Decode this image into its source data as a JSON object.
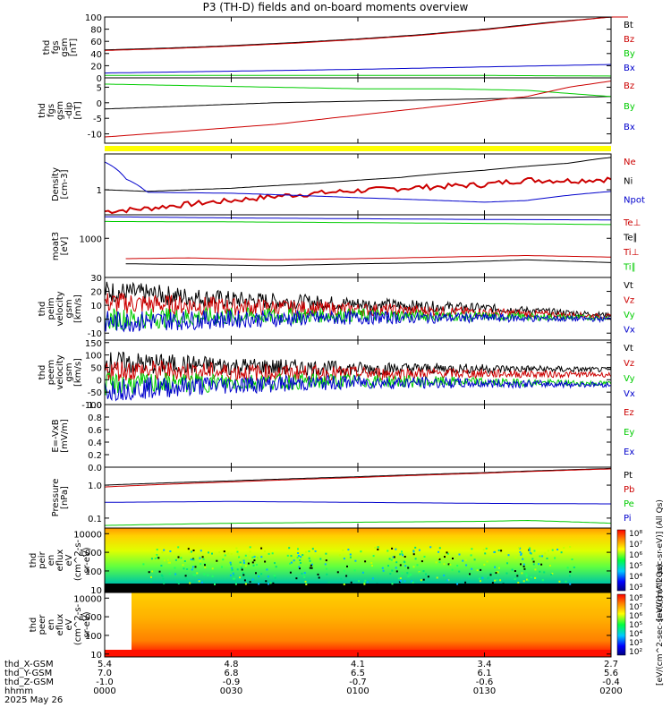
{
  "title": "P3 (TH-D) fields and on-board moments overview",
  "colors": {
    "black": "#000000",
    "red": "#cc0000",
    "green": "#00cc00",
    "blue": "#0000cc",
    "yellow": "#ffff00"
  },
  "chart_data": [
    {
      "id": "fgs_mag",
      "type": "line",
      "ylabel": [
        "thd",
        "fgs",
        "gsm",
        "[nT]"
      ],
      "ylim": [
        0,
        100
      ],
      "yticks": [
        0,
        20,
        40,
        60,
        80,
        100
      ],
      "legend": [
        {
          "name": "Bt",
          "color": "#000000"
        },
        {
          "name": "Bz",
          "color": "#cc0000"
        },
        {
          "name": "By",
          "color": "#00cc00"
        },
        {
          "name": "Bx",
          "color": "#0000cc"
        }
      ],
      "series": [
        {
          "name": "Bt",
          "color": "#000000",
          "x": [
            0,
            15,
            30,
            45,
            60,
            75,
            90,
            105,
            120,
            124
          ],
          "y": [
            46,
            49,
            53,
            58,
            64,
            71,
            80,
            91,
            100,
            100
          ]
        },
        {
          "name": "Bz",
          "color": "#cc0000",
          "x": [
            0,
            15,
            30,
            45,
            60,
            75,
            90,
            105,
            120,
            124
          ],
          "y": [
            45,
            48,
            52,
            57,
            63,
            70,
            79,
            90,
            100,
            100
          ]
        },
        {
          "name": "By",
          "color": "#00cc00",
          "x": [
            0,
            30,
            60,
            90,
            120
          ],
          "y": [
            4,
            4,
            4,
            4,
            3
          ]
        },
        {
          "name": "Bx",
          "color": "#0000cc",
          "x": [
            0,
            30,
            60,
            90,
            120
          ],
          "y": [
            8,
            11,
            14,
            18,
            22
          ]
        }
      ]
    },
    {
      "id": "fgs_dsl",
      "type": "line",
      "ylabel": [
        "thd",
        "fgs",
        "gsm",
        "-dip",
        "[nT]"
      ],
      "ylim": [
        -13,
        8
      ],
      "yticks": [
        -10,
        -5,
        0,
        5
      ],
      "legend": [
        {
          "name": "Bz",
          "color": "#cc0000"
        },
        {
          "name": "By",
          "color": "#00cc00"
        },
        {
          "name": "Bx",
          "color": "#0000cc"
        }
      ],
      "series": [
        {
          "name": "Bx",
          "color": "#000000",
          "x": [
            0,
            20,
            40,
            60,
            80,
            100,
            120
          ],
          "y": [
            -2,
            -1,
            0,
            0.5,
            1,
            1.5,
            2
          ]
        },
        {
          "name": "By",
          "color": "#00cc00",
          "x": [
            0,
            20,
            40,
            60,
            80,
            100,
            110,
            120
          ],
          "y": [
            6,
            5.5,
            5,
            4.5,
            4.5,
            4,
            3,
            2
          ]
        },
        {
          "name": "Bz",
          "color": "#cc0000",
          "x": [
            0,
            20,
            40,
            60,
            80,
            100,
            110,
            120
          ],
          "y": [
            -11,
            -9,
            -7,
            -4,
            -1,
            2,
            5,
            7
          ]
        }
      ]
    },
    {
      "id": "density",
      "type": "line",
      "ylabel": [
        "Density",
        "[cm-3]"
      ],
      "yscale": "log",
      "ylim": [
        0.2,
        10
      ],
      "yticks": [
        1
      ],
      "legend": [
        {
          "name": "Ne",
          "color": "#cc0000"
        },
        {
          "name": "Ni",
          "color": "#000000"
        },
        {
          "name": "Npot",
          "color": "#0000cc"
        }
      ],
      "series": [
        {
          "name": "Ni",
          "color": "#000000",
          "x": [
            0,
            10,
            30,
            50,
            70,
            90,
            110,
            120
          ],
          "y": [
            1.0,
            0.9,
            1.1,
            1.5,
            2.2,
            3.5,
            5.5,
            8
          ]
        },
        {
          "name": "Ne",
          "color": "#cc0000",
          "x": [
            0,
            10,
            30,
            50,
            70,
            90,
            100,
            110,
            120
          ],
          "y": [
            0.25,
            0.3,
            0.5,
            0.8,
            1.1,
            1.4,
            1.9,
            1.8,
            2.0
          ]
        },
        {
          "name": "Npot",
          "color": "#0000cc",
          "x": [
            0,
            5,
            10,
            30,
            60,
            90,
            100,
            120
          ],
          "y": [
            6,
            2.0,
            0.85,
            0.8,
            0.6,
            0.45,
            0.5,
            0.9
          ]
        }
      ]
    },
    {
      "id": "temperature",
      "type": "line",
      "ylabel": [
        "moat3",
        "[eV]"
      ],
      "ylim": [
        0,
        1600
      ],
      "yticks": [
        1000
      ],
      "legend": [
        {
          "name": "Te⊥",
          "color": "#cc0000"
        },
        {
          "name": "Te∥",
          "color": "#000000"
        },
        {
          "name": "Ti⊥",
          "color": "#cc0000"
        },
        {
          "name": "Ti∥",
          "color": "#00cc00"
        }
      ],
      "series": [
        {
          "name": "Te⊥",
          "color": "#0000cc",
          "x": [
            0,
            30,
            60,
            90,
            120
          ],
          "y": [
            1550,
            1520,
            1500,
            1480,
            1470
          ]
        },
        {
          "name": "Ti∥",
          "color": "#00cc00",
          "x": [
            0,
            30,
            60,
            90,
            120
          ],
          "y": [
            1430,
            1420,
            1400,
            1380,
            1350
          ]
        },
        {
          "name": "Ti⊥",
          "color": "#cc0000",
          "x": [
            5,
            20,
            40,
            60,
            80,
            100,
            120
          ],
          "y": [
            480,
            500,
            450,
            480,
            520,
            560,
            520
          ]
        },
        {
          "name": "Te∥",
          "color": "#000000",
          "x": [
            5,
            20,
            40,
            60,
            80,
            100,
            120
          ],
          "y": [
            350,
            330,
            300,
            350,
            380,
            450,
            380
          ]
        }
      ]
    },
    {
      "id": "peim_velocity",
      "type": "line",
      "ylabel": [
        "thd",
        "peim",
        "velocity",
        "gsm",
        "[km/s]"
      ],
      "ylim": [
        -15,
        30
      ],
      "yticks": [
        -10,
        0,
        10,
        20,
        30
      ],
      "legend": [
        {
          "name": "Vt",
          "color": "#000000"
        },
        {
          "name": "Vz",
          "color": "#cc0000"
        },
        {
          "name": "Vy",
          "color": "#00cc00"
        },
        {
          "name": "Vx",
          "color": "#0000cc"
        }
      ],
      "series": [
        {
          "name": "Vt",
          "color": "#000000",
          "x": [
            0,
            30,
            60,
            90,
            120
          ],
          "y": [
            20,
            14,
            11,
            8,
            3
          ]
        },
        {
          "name": "Vz",
          "color": "#cc0000",
          "x": [
            0,
            30,
            60,
            90,
            120
          ],
          "y": [
            12,
            9,
            7,
            5,
            2
          ]
        },
        {
          "name": "Vy",
          "color": "#00cc00",
          "x": [
            0,
            30,
            60,
            90,
            120
          ],
          "y": [
            0,
            2,
            3,
            2,
            1
          ]
        },
        {
          "name": "Vx",
          "color": "#0000cc",
          "x": [
            0,
            30,
            60,
            90,
            120
          ],
          "y": [
            -2,
            0,
            1,
            1,
            0
          ]
        }
      ]
    },
    {
      "id": "peem_velocity",
      "type": "line",
      "ylabel": [
        "thd",
        "peem",
        "velocity",
        "gsm",
        "[km/s]"
      ],
      "ylim": [
        -100,
        160
      ],
      "yticks": [
        -100,
        -50,
        0,
        50,
        100,
        150
      ],
      "legend": [
        {
          "name": "Vt",
          "color": "#000000"
        },
        {
          "name": "Vz",
          "color": "#cc0000"
        },
        {
          "name": "Vy",
          "color": "#00cc00"
        },
        {
          "name": "Vx",
          "color": "#0000cc"
        }
      ],
      "series": [
        {
          "name": "Vt",
          "color": "#000000",
          "x": [
            0,
            30,
            60,
            90,
            120
          ],
          "y": [
            70,
            55,
            45,
            45,
            40
          ]
        },
        {
          "name": "Vz",
          "color": "#cc0000",
          "x": [
            0,
            30,
            60,
            90,
            120
          ],
          "y": [
            40,
            30,
            25,
            25,
            20
          ]
        },
        {
          "name": "Vy",
          "color": "#00cc00",
          "x": [
            0,
            30,
            60,
            90,
            120
          ],
          "y": [
            -20,
            -10,
            -5,
            -10,
            -15
          ]
        },
        {
          "name": "Vx",
          "color": "#0000cc",
          "x": [
            0,
            30,
            60,
            90,
            120
          ],
          "y": [
            -40,
            -20,
            -10,
            -15,
            -20
          ]
        }
      ]
    },
    {
      "id": "efield",
      "type": "line",
      "ylabel": [
        "E=-VxB",
        "[mV/m]"
      ],
      "ylim": [
        0,
        1
      ],
      "yticks": [
        0.0,
        0.2,
        0.4,
        0.6,
        0.8,
        1.0
      ],
      "legend": [
        {
          "name": "Ez",
          "color": "#cc0000"
        },
        {
          "name": "Ey",
          "color": "#00cc00"
        },
        {
          "name": "Ex",
          "color": "#0000cc"
        }
      ],
      "series": []
    },
    {
      "id": "pressure",
      "type": "line",
      "ylabel": [
        "Pressure",
        "[nPa]"
      ],
      "yscale": "log",
      "ylim": [
        0.05,
        3.5
      ],
      "yticks": [
        0.1,
        1.0
      ],
      "legend": [
        {
          "name": "Pt",
          "color": "#000000"
        },
        {
          "name": "Pb",
          "color": "#cc0000"
        },
        {
          "name": "Pe",
          "color": "#00cc00"
        },
        {
          "name": "Pi",
          "color": "#0000cc"
        }
      ],
      "series": [
        {
          "name": "Pt",
          "color": "#000000",
          "x": [
            0,
            30,
            60,
            90,
            120
          ],
          "y": [
            1.0,
            1.35,
            1.8,
            2.4,
            3.2
          ]
        },
        {
          "name": "Pb",
          "color": "#cc0000",
          "x": [
            0,
            30,
            60,
            90,
            120
          ],
          "y": [
            0.88,
            1.25,
            1.7,
            2.3,
            3.1
          ]
        },
        {
          "name": "Pi",
          "color": "#0000cc",
          "x": [
            0,
            30,
            60,
            90,
            120
          ],
          "y": [
            0.3,
            0.32,
            0.3,
            0.28,
            0.27
          ]
        },
        {
          "name": "Pe",
          "color": "#00cc00",
          "x": [
            0,
            30,
            60,
            90,
            100,
            120
          ],
          "y": [
            0.06,
            0.07,
            0.075,
            0.08,
            0.085,
            0.07
          ]
        }
      ]
    },
    {
      "id": "peir_spec",
      "type": "heatmap",
      "ylabel": [
        "thd",
        "peir",
        "en",
        "eflux",
        "eV",
        "(cm^2-s-",
        "sr-eV)"
      ],
      "yscale": "log",
      "ylim": [
        7,
        20000
      ],
      "yticks": [
        10,
        100,
        1000,
        10000
      ]
    },
    {
      "id": "peer_spec",
      "type": "heatmap",
      "ylabel": [
        "thd",
        "peer",
        "en",
        "eflux",
        "eV",
        "(cm^2-s-",
        "sr-eV)"
      ],
      "yscale": "log",
      "ylim": [
        7,
        20000
      ],
      "yticks": [
        10,
        100,
        1000,
        10000
      ]
    }
  ],
  "colorbars": [
    {
      "labels": [
        "10⁸",
        "10⁷",
        "10⁶",
        "10⁵",
        "10⁴",
        "10³"
      ],
      "title": "[eV/(cm^2-sec-sr-eV)] (All Qs)"
    },
    {
      "labels": [
        "10⁸",
        "10⁷",
        "10⁶",
        "10⁵",
        "10⁴",
        "10³",
        "10²"
      ],
      "title": "[eV/(cm^2-sec-sr-eV)] (All Qs)"
    }
  ],
  "xaxis": {
    "range_min": [
      0,
      120
    ],
    "tick_minutes": [
      0,
      30,
      60,
      90,
      120
    ],
    "rows": [
      {
        "label": "thd_X-GSM",
        "values": [
          "5.4",
          "4.8",
          "4.1",
          "3.4",
          "2.7"
        ]
      },
      {
        "label": "thd_Y-GSM",
        "values": [
          "7.0",
          "6.8",
          "6.5",
          "6.1",
          "5.6"
        ]
      },
      {
        "label": "thd_Z-GSM",
        "values": [
          "-1.0",
          "-0.9",
          "-0.7",
          "-0.6",
          "-0.4"
        ]
      },
      {
        "label": "hhmm",
        "values": [
          "0000",
          "0030",
          "0100",
          "0130",
          "0200"
        ]
      }
    ],
    "date": "2025 May 26"
  }
}
